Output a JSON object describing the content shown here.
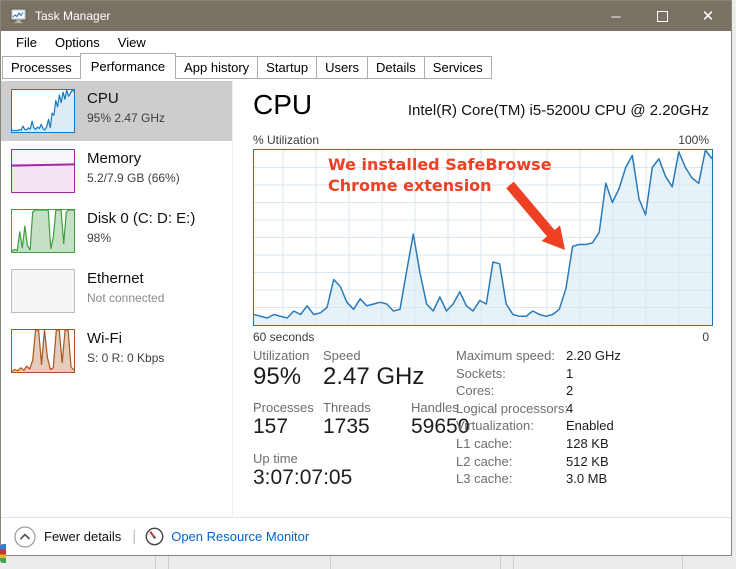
{
  "titlebar": {
    "title": "Task Manager",
    "controls": {
      "minimize": "─",
      "close": "✕"
    }
  },
  "menu": {
    "file": "File",
    "options": "Options",
    "view": "View"
  },
  "tabs": {
    "items": [
      "Processes",
      "Performance",
      "App history",
      "Startup",
      "Users",
      "Details",
      "Services"
    ],
    "selected": "Performance"
  },
  "sidebar": {
    "items": [
      {
        "title": "CPU",
        "subtitle": "95% 2.47 GHz"
      },
      {
        "title": "Memory",
        "subtitle": "5.2/7.9 GB (66%)"
      },
      {
        "title": "Disk 0 (C: D: E:)",
        "subtitle": "98%"
      },
      {
        "title": "Ethernet",
        "subtitle": "Not connected"
      },
      {
        "title": "Wi-Fi",
        "subtitle": "S: 0 R: 0 Kbps"
      }
    ]
  },
  "main": {
    "title": "CPU",
    "processor": "Intel(R) Core(TM) i5-5200U CPU @ 2.20GHz",
    "y_axis_label": "% Utilization",
    "y_max_label": "100%",
    "x_left_label": "60 seconds",
    "x_right_label": "0",
    "annotation": {
      "line1": "We installed SafeBrowse",
      "line2": "Chrome extension",
      "color": "#ee4023"
    },
    "stats": {
      "utilization": {
        "label": "Utilization",
        "value": "95%"
      },
      "speed": {
        "label": "Speed",
        "value": "2.47 GHz"
      },
      "processes": {
        "label": "Processes",
        "value": "157"
      },
      "threads": {
        "label": "Threads",
        "value": "1735"
      },
      "handles": {
        "label": "Handles",
        "value": "59650"
      },
      "uptime": {
        "label": "Up time",
        "value": "3:07:07:05"
      }
    },
    "details": {
      "rows": [
        {
          "label": "Maximum speed:",
          "value": "2.20 GHz"
        },
        {
          "label": "Sockets:",
          "value": "1"
        },
        {
          "label": "Cores:",
          "value": "2"
        },
        {
          "label": "Logical processors:",
          "value": "4"
        },
        {
          "label": "Virtualization:",
          "value": "Enabled"
        },
        {
          "label": "L1 cache:",
          "value": "128 KB"
        },
        {
          "label": "L2 cache:",
          "value": "512 KB"
        },
        {
          "label": "L3 cache:",
          "value": "3.0 MB"
        }
      ]
    }
  },
  "footer": {
    "fewer_details": "Fewer details",
    "open_resource_monitor": "Open Resource Monitor"
  },
  "colors": {
    "titlebar": "#7a7365",
    "chart_border": "#117dbb",
    "chart_line": "#2a7ab9",
    "grid": "#d9e7f2",
    "selected_sidebar_bg": "#cdcdcd",
    "annotation_red": "#ee4023",
    "link_blue": "#0066cc",
    "memory_purple": "#a02aa5",
    "disk_green": "#3f9c3f",
    "wifi_orange": "#a8551e"
  },
  "chart_data": {
    "type": "area",
    "title": "CPU % Utilization over last 60 seconds",
    "ylabel": "% Utilization",
    "ylim": [
      0,
      100
    ],
    "x_left": "60 seconds",
    "x_right": "0",
    "grid": true,
    "legend": "none",
    "values": [
      6,
      5,
      4,
      6,
      5,
      4,
      8,
      6,
      11,
      6,
      7,
      10,
      26,
      22,
      13,
      9,
      15,
      11,
      12,
      13,
      12,
      8,
      9,
      31,
      52,
      30,
      12,
      8,
      16,
      8,
      12,
      19,
      11,
      8,
      14,
      12,
      36,
      35,
      12,
      6,
      5,
      5,
      8,
      6,
      5,
      6,
      9,
      21,
      45,
      46,
      46,
      47,
      53,
      81,
      70,
      78,
      90,
      97,
      72,
      63,
      90,
      95,
      85,
      79,
      99,
      90,
      84,
      81,
      100,
      95
    ],
    "sparklines": {
      "cpu": {
        "color": "#1879bf",
        "values": [
          5,
          3,
          4,
          3,
          6,
          4,
          14,
          6,
          5,
          10,
          7,
          26,
          10,
          6,
          12,
          8,
          18,
          8,
          5,
          12,
          30,
          10,
          45,
          40,
          75,
          60,
          88,
          70,
          95,
          78,
          100,
          85,
          92,
          100,
          96
        ]
      },
      "disk": {
        "color": "#3f9c3f",
        "values": [
          2,
          6,
          3,
          48,
          10,
          62,
          15,
          5,
          95,
          100,
          100,
          100,
          100,
          100,
          100,
          8,
          35,
          100,
          100,
          100,
          20,
          95,
          100,
          100,
          100
        ]
      },
      "wifi": {
        "color": "#a8551e",
        "values": [
          2,
          6,
          3,
          10,
          4,
          14,
          7,
          28,
          100,
          100,
          18,
          100,
          35,
          6,
          10,
          100,
          100,
          22,
          100,
          100,
          12,
          5
        ]
      },
      "memory": {
        "used_percent": 66
      }
    }
  }
}
